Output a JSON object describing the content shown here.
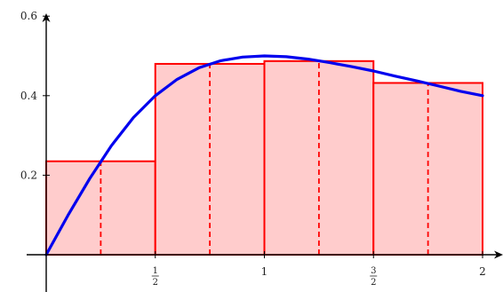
{
  "chart_data": {
    "type": "bar",
    "description_free": true,
    "xlim": [
      0,
      2
    ],
    "ylim": [
      0,
      0.6
    ],
    "x_ticks": [
      {
        "value": 0.5,
        "num": "1",
        "den": "2"
      },
      {
        "value": 1,
        "label": "1"
      },
      {
        "value": 1.5,
        "num": "3",
        "den": "2"
      },
      {
        "value": 2,
        "label": "2"
      }
    ],
    "y_ticks": [
      {
        "value": 0.2,
        "label": "0.2"
      },
      {
        "value": 0.4,
        "label": "0.4"
      },
      {
        "value": 0.6,
        "label": "0.6"
      }
    ],
    "rectangles": [
      {
        "x0": 0,
        "x1": 0.5,
        "height": 0.235,
        "midpoint": 0.25
      },
      {
        "x0": 0.5,
        "x1": 1.0,
        "height": 0.48,
        "midpoint": 0.75
      },
      {
        "x0": 1.0,
        "x1": 1.5,
        "height": 0.487,
        "midpoint": 1.25
      },
      {
        "x0": 1.5,
        "x1": 2.0,
        "height": 0.432,
        "midpoint": 1.75
      }
    ],
    "curve": {
      "x": [
        0,
        0.1,
        0.2,
        0.3,
        0.4,
        0.5,
        0.6,
        0.7,
        0.8,
        0.9,
        1.0,
        1.1,
        1.2,
        1.3,
        1.4,
        1.5,
        1.6,
        1.7,
        1.8,
        1.9,
        2.0
      ],
      "y": [
        0,
        0.099,
        0.192,
        0.275,
        0.345,
        0.4,
        0.441,
        0.47,
        0.488,
        0.497,
        0.5,
        0.498,
        0.492,
        0.483,
        0.473,
        0.462,
        0.449,
        0.437,
        0.424,
        0.411,
        0.4
      ]
    },
    "colors": {
      "bar_fill": "#ffcccc",
      "bar_stroke": "#ff0000",
      "curve": "#0000ee",
      "axis": "#000000"
    }
  }
}
